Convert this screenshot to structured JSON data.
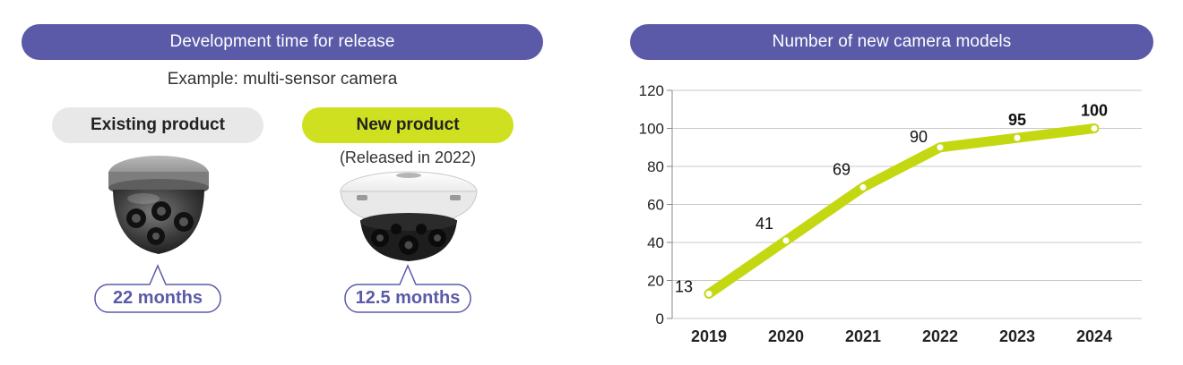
{
  "colors": {
    "banner": "#5a5aa8",
    "existing_pill": "#e8e8e8",
    "new_pill": "#cfe020",
    "bubble_text": "#5a5aa8",
    "line": "#c4d812",
    "gridline": "#c8c8c8"
  },
  "left_panel": {
    "banner_title": "Development time for release",
    "subtitle": "Example: multi-sensor camera",
    "existing": {
      "label": "Existing product",
      "duration": "22 months",
      "image": "dome-camera-existing"
    },
    "new": {
      "label": "New product",
      "release_note": "(Released in 2022)",
      "duration": "12.5 months",
      "image": "dome-camera-new"
    }
  },
  "right_panel": {
    "banner_title": "Number of new camera models"
  },
  "chart_data": {
    "type": "line",
    "title": "Number of new camera models",
    "categories": [
      "2019",
      "2020",
      "2021",
      "2022",
      "2023",
      "2024"
    ],
    "series": [
      {
        "values": [
          13,
          41,
          69,
          90,
          95,
          100
        ]
      }
    ],
    "data_labels": [
      "13",
      "41",
      "69",
      "90",
      "95",
      "100"
    ],
    "bold_labels": [
      false,
      false,
      false,
      false,
      true,
      true
    ],
    "yticks": [
      "0",
      "20",
      "40",
      "60",
      "80",
      "100",
      "120"
    ],
    "ylim": [
      0,
      120
    ],
    "grid": true,
    "legend": "none"
  }
}
